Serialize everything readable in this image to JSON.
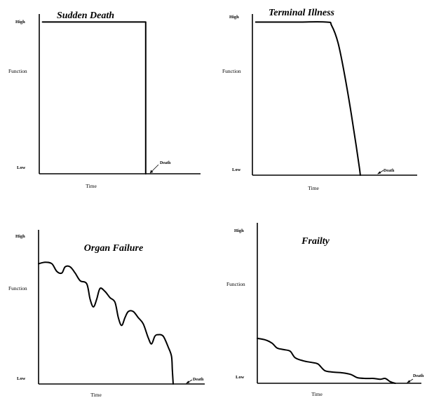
{
  "chart_data": [
    {
      "type": "line",
      "title": "Sudden Death",
      "xlabel": "Time",
      "ylabel": "Function",
      "y_ticks": [
        "High",
        "Low"
      ],
      "annotation": "Death",
      "series": [
        {
          "points": [
            [
              0.02,
              0.95
            ],
            [
              0.66,
              0.95
            ],
            [
              0.66,
              0.0
            ]
          ]
        }
      ]
    },
    {
      "type": "line",
      "title": "Terminal Illness",
      "xlabel": "Time",
      "ylabel": "Function",
      "y_ticks": [
        "High",
        "Low"
      ],
      "annotation": "Death",
      "series": [
        {
          "points": [
            [
              0.02,
              0.95
            ],
            [
              0.25,
              0.95
            ],
            [
              0.45,
              0.95
            ],
            [
              0.48,
              0.93
            ],
            [
              0.52,
              0.82
            ],
            [
              0.56,
              0.62
            ],
            [
              0.6,
              0.38
            ],
            [
              0.63,
              0.18
            ],
            [
              0.65,
              0.04
            ],
            [
              0.655,
              0.0
            ]
          ]
        }
      ]
    },
    {
      "type": "line",
      "title": "Organ Failure",
      "xlabel": "Time",
      "ylabel": "Function",
      "y_ticks": [
        "High",
        "Low"
      ],
      "annotation": "Death",
      "series": [
        {
          "points": [
            [
              0.0,
              0.78
            ],
            [
              0.04,
              0.79
            ],
            [
              0.08,
              0.78
            ],
            [
              0.11,
              0.73
            ],
            [
              0.14,
              0.72
            ],
            [
              0.16,
              0.76
            ],
            [
              0.19,
              0.76
            ],
            [
              0.22,
              0.72
            ],
            [
              0.25,
              0.67
            ],
            [
              0.29,
              0.65
            ],
            [
              0.31,
              0.55
            ],
            [
              0.33,
              0.5
            ],
            [
              0.35,
              0.55
            ],
            [
              0.37,
              0.62
            ],
            [
              0.4,
              0.6
            ],
            [
              0.43,
              0.56
            ],
            [
              0.46,
              0.53
            ],
            [
              0.48,
              0.43
            ],
            [
              0.5,
              0.38
            ],
            [
              0.52,
              0.43
            ],
            [
              0.54,
              0.47
            ],
            [
              0.57,
              0.47
            ],
            [
              0.6,
              0.43
            ],
            [
              0.63,
              0.39
            ],
            [
              0.66,
              0.3
            ],
            [
              0.68,
              0.26
            ],
            [
              0.7,
              0.31
            ],
            [
              0.72,
              0.32
            ],
            [
              0.75,
              0.31
            ],
            [
              0.78,
              0.24
            ],
            [
              0.8,
              0.18
            ],
            [
              0.805,
              0.09
            ],
            [
              0.81,
              0.0
            ]
          ]
        }
      ]
    },
    {
      "type": "line",
      "title": "Frailty",
      "xlabel": "Time",
      "ylabel": "Function",
      "y_ticks": [
        "High",
        "Low"
      ],
      "annotation": "Death",
      "series": [
        {
          "points": [
            [
              0.0,
              0.28
            ],
            [
              0.05,
              0.27
            ],
            [
              0.09,
              0.25
            ],
            [
              0.12,
              0.22
            ],
            [
              0.16,
              0.21
            ],
            [
              0.2,
              0.2
            ],
            [
              0.23,
              0.16
            ],
            [
              0.28,
              0.14
            ],
            [
              0.33,
              0.13
            ],
            [
              0.37,
              0.12
            ],
            [
              0.41,
              0.08
            ],
            [
              0.46,
              0.07
            ],
            [
              0.52,
              0.065
            ],
            [
              0.57,
              0.055
            ],
            [
              0.61,
              0.035
            ],
            [
              0.66,
              0.03
            ],
            [
              0.71,
              0.03
            ],
            [
              0.75,
              0.025
            ],
            [
              0.78,
              0.03
            ],
            [
              0.81,
              0.01
            ],
            [
              0.84,
              0.0
            ]
          ]
        }
      ]
    }
  ]
}
